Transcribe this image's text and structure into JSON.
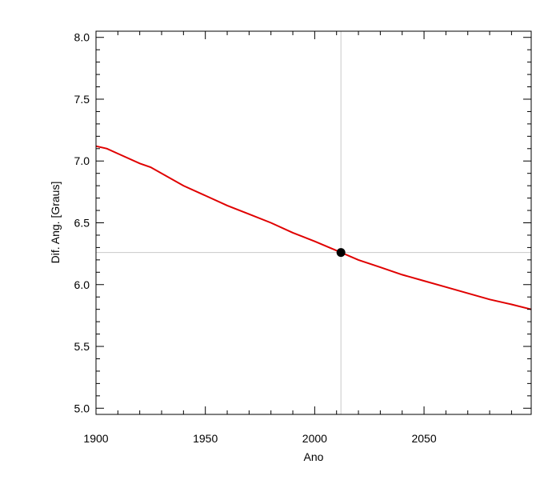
{
  "chart_data": {
    "type": "line",
    "xlabel": "Ano",
    "ylabel": "Dif. Ang. [Graus]",
    "xlim": [
      1900,
      2099
    ],
    "ylim": [
      4.95,
      8.05
    ],
    "x_ticks": [
      1900,
      1950,
      2000,
      2050
    ],
    "x_tick_labels": [
      "1900",
      "1950",
      "2000",
      "2050"
    ],
    "y_ticks": [
      5.0,
      5.5,
      6.0,
      6.5,
      7.0,
      7.5,
      8.0
    ],
    "y_tick_labels": [
      "5.0",
      "5.5",
      "6.0",
      "6.5",
      "7.0",
      "7.5",
      "8.0"
    ],
    "grid": false,
    "series": [
      {
        "color": "#e00000",
        "x": [
          1900,
          1905,
          1910,
          1920,
          1925,
          1940,
          1950,
          1960,
          1970,
          1980,
          1990,
          2000,
          2012,
          2020,
          2030,
          2040,
          2050,
          2060,
          2070,
          2080,
          2090,
          2099
        ],
        "y": [
          7.12,
          7.1,
          7.06,
          6.98,
          6.95,
          6.8,
          6.72,
          6.64,
          6.57,
          6.5,
          6.42,
          6.35,
          6.26,
          6.2,
          6.14,
          6.08,
          6.03,
          5.98,
          5.93,
          5.88,
          5.84,
          5.8
        ]
      }
    ],
    "marker": {
      "x": 2012,
      "y": 6.26,
      "color": "#000000"
    },
    "crosshair": {
      "x": 2012,
      "y": 6.26,
      "color": "#c8c8c8"
    }
  }
}
